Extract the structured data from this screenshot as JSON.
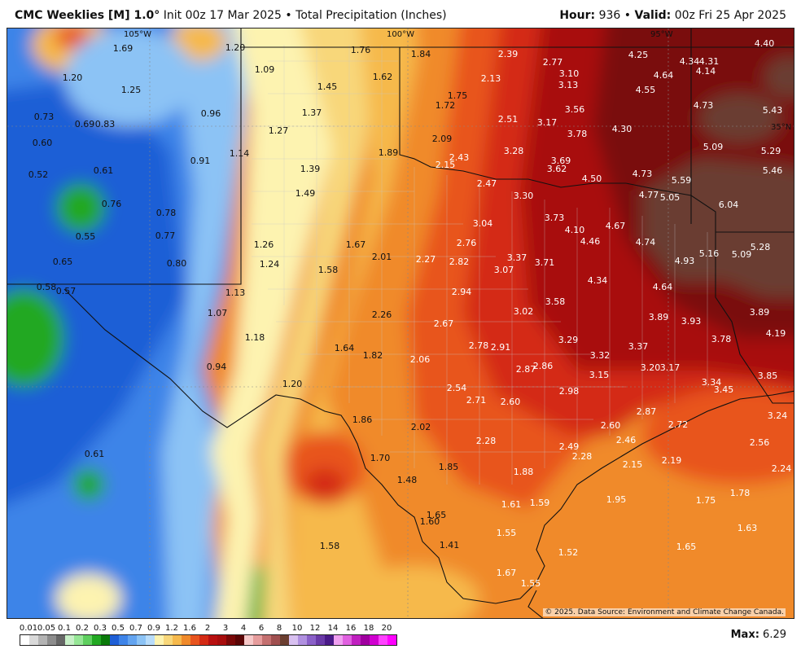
{
  "header": {
    "model": "CMC Weeklies [M] 1.0°",
    "init": "Init 00z 17 Mar 2025",
    "separator": "•",
    "product": "Total Precipitation (Inches)",
    "hour_label": "Hour:",
    "hour_value": "936",
    "valid_label": "Valid:",
    "valid_value": "00z Fri 25 Apr 2025"
  },
  "map": {
    "longitude_labels": [
      "105°W",
      "100°W",
      "95°W"
    ],
    "latitude_labels": [
      "35°N"
    ],
    "colors": {
      "blue_dark": "#1f5fd6",
      "blue_mid": "#3e84e8",
      "blue_light": "#8cc3f5",
      "green": "#22a822",
      "green_light": "#5fcf5f",
      "pale_yellow": "#fdf3b0",
      "yellow": "#f8d77a",
      "orange_light": "#f6b94c",
      "orange": "#f08a2a",
      "red_orange": "#e8541e",
      "red": "#d42a14",
      "dark_red": "#a80d0d",
      "maroon": "#7a0808",
      "brown": "#6b3e30"
    },
    "values": [
      "1.69",
      "1.20",
      "1.25",
      "1.20",
      "1.09",
      "1.76",
      "1.84",
      "2.39",
      "2.77",
      "3.10",
      "3.13",
      "4.25",
      "4.34",
      "4.31",
      "4.14",
      "4.64",
      "4.55",
      "4.40",
      "0.73",
      "0.69",
      "0.83",
      "0.96",
      "1.45",
      "1.37",
      "1.62",
      "1.75",
      "1.72",
      "2.13",
      "2.51",
      "3.56",
      "3.17",
      "3.78",
      "4.30",
      "4.73",
      "5.43",
      "0.60",
      "1.27",
      "2.09",
      "3.28",
      "3.69",
      "3.62",
      "5.09",
      "5.29",
      "0.52",
      "0.61",
      "0.91",
      "1.14",
      "1.89",
      "2.43",
      "2.15",
      "4.50",
      "4.73",
      "5.59",
      "5.46",
      "0.76",
      "0.78",
      "1.39",
      "1.49",
      "2.47",
      "3.30",
      "5.05",
      "4.77",
      "6.04",
      "0.55",
      "0.77",
      "3.73",
      "4.10",
      "4.67",
      "3.04",
      "0.65",
      "0.80",
      "1.26",
      "1.24",
      "1.67",
      "2.01",
      "2.27",
      "2.76",
      "2.82",
      "3.37",
      "3.71",
      "4.46",
      "4.74",
      "4.93",
      "5.16",
      "5.09",
      "5.28",
      "0.58",
      "0.57",
      "1.58",
      "3.07",
      "4.34",
      "4.64",
      "1.13",
      "1.07",
      "2.94",
      "3.58",
      "3.02",
      "2.26",
      "2.67",
      "3.89",
      "3.93",
      "3.89",
      "4.19",
      "1.18",
      "0.94",
      "1.64",
      "1.82",
      "2.06",
      "2.78",
      "2.91",
      "3.29",
      "3.32",
      "3.37",
      "3.78",
      "2.87",
      "2.86",
      "3.15",
      "3.20",
      "3.17",
      "3.85",
      "1.20",
      "2.54",
      "2.71",
      "2.60",
      "2.98",
      "3.34",
      "3.45",
      "1.86",
      "2.02",
      "2.87",
      "2.72",
      "3.24",
      "0.61",
      "1.70",
      "2.28",
      "2.60",
      "2.46",
      "2.56",
      "1.85",
      "2.49",
      "2.28",
      "2.15",
      "2.19",
      "2.24",
      "1.48",
      "1.88",
      "1.95",
      "1.75",
      "1.78",
      "1.65",
      "1.60",
      "1.61",
      "1.59",
      "1.55",
      "1.63",
      "1.58",
      "1.41",
      "1.52",
      "1.65",
      "1.67",
      "1.55"
    ],
    "credit": "© 2025. Data Source: Environment and Climate Change Canada."
  },
  "legend": {
    "labels": [
      "0.01",
      "0.05",
      "0.1",
      "0.2",
      "0.3",
      "0.5",
      "0.7",
      "0.9",
      "1.2",
      "1.6",
      "2",
      "3",
      "4",
      "6",
      "8",
      "10",
      "12",
      "14",
      "16",
      "18",
      "20"
    ],
    "swatch_colors": [
      "#ffffff",
      "#d9d9d9",
      "#b3b3b3",
      "#8c8c8c",
      "#666666",
      "#c8f0c8",
      "#96e696",
      "#5fcf5f",
      "#22a822",
      "#0a7a0a",
      "#1f5fd6",
      "#3e84e8",
      "#63a4f0",
      "#8cc3f5",
      "#b8dcfa",
      "#fdf3b0",
      "#f8d77a",
      "#f6b94c",
      "#f08a2a",
      "#e8541e",
      "#d42a14",
      "#b81010",
      "#a80d0d",
      "#7a0808",
      "#5a0505",
      "#f6c8c8",
      "#e69c9c",
      "#c47070",
      "#a05050",
      "#6b3e30",
      "#d8c0f0",
      "#b090e0",
      "#8a60c8",
      "#6a3aa8",
      "#4a1a88",
      "#f0a0f0",
      "#e060e0",
      "#c020c0",
      "#a000a0",
      "#d000d0",
      "#ff40ff",
      "#ff00ff"
    ],
    "max_label": "Max:",
    "max_value": "6.29"
  }
}
